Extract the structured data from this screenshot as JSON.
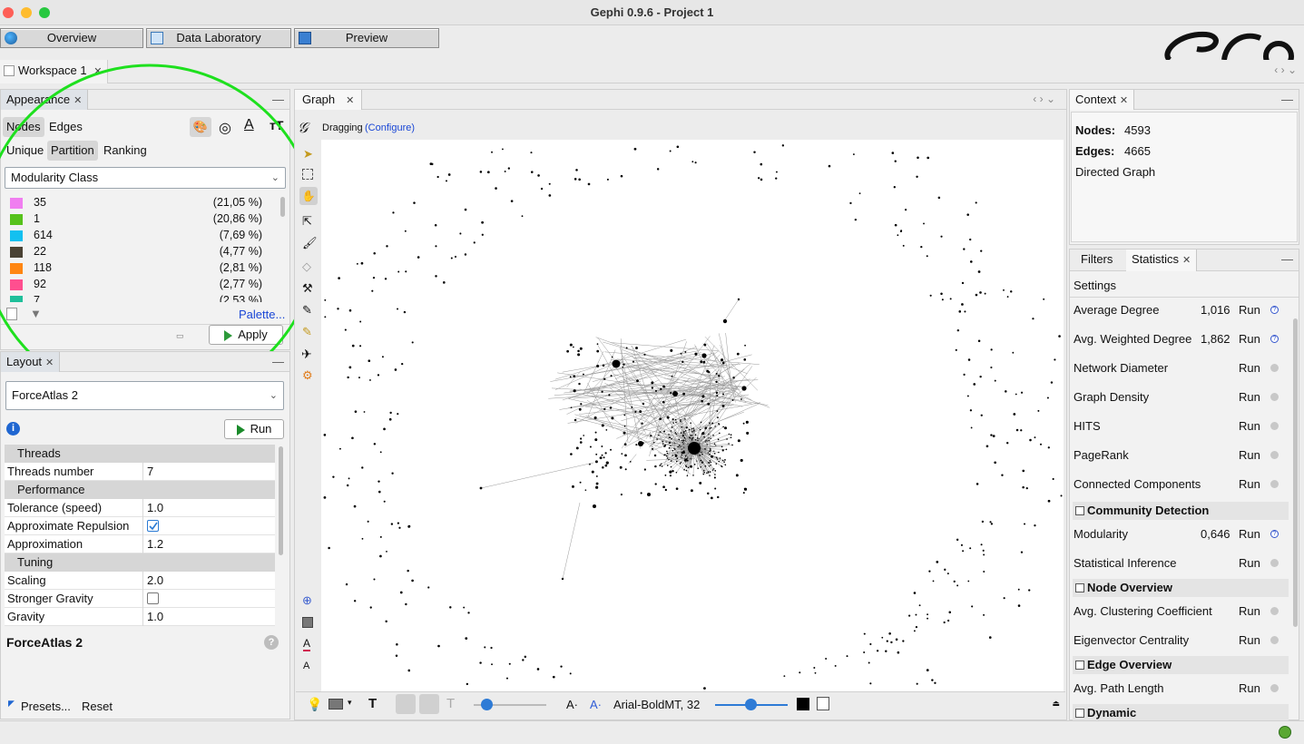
{
  "window": {
    "title": "Gephi 0.9.6 - Project 1"
  },
  "toolbar": {
    "overview": "Overview",
    "data_laboratory": "Data Laboratory",
    "preview": "Preview"
  },
  "workspace": {
    "tab": "Workspace 1"
  },
  "appearance": {
    "tab": "Appearance",
    "nodes": "Nodes",
    "edges": "Edges",
    "unique": "Unique",
    "partition": "Partition",
    "ranking": "Ranking",
    "attribute": "Modularity Class",
    "partitions": [
      {
        "name": "35",
        "pct": "(21,05 %)",
        "color": "#f07ef0"
      },
      {
        "name": "1",
        "pct": "(20,86 %)",
        "color": "#56c21b"
      },
      {
        "name": "614",
        "pct": "(7,69 %)",
        "color": "#12c0f0"
      },
      {
        "name": "22",
        "pct": "(4,77 %)",
        "color": "#4a4234"
      },
      {
        "name": "118",
        "pct": "(2,81 %)",
        "color": "#ff8612"
      },
      {
        "name": "92",
        "pct": "(2,77 %)",
        "color": "#ff4f8f"
      },
      {
        "name": "7",
        "pct": "(2,53 %)",
        "color": "#1fbf9a"
      }
    ],
    "palette": "Palette...",
    "apply": "Apply"
  },
  "layout": {
    "tab": "Layout",
    "algorithm": "ForceAtlas 2",
    "run": "Run",
    "sections": {
      "threads": "Threads",
      "performance": "Performance",
      "tuning": "Tuning"
    },
    "props": {
      "threads_number": {
        "k": "Threads number",
        "v": "7"
      },
      "tolerance": {
        "k": "Tolerance (speed)",
        "v": "1.0"
      },
      "approx_repulsion": {
        "k": "Approximate Repulsion"
      },
      "approximation": {
        "k": "Approximation",
        "v": "1.2"
      },
      "scaling": {
        "k": "Scaling",
        "v": "2.0"
      },
      "stronger_gravity": {
        "k": "Stronger Gravity"
      },
      "gravity": {
        "k": "Gravity",
        "v": "1.0"
      }
    },
    "description_title": "ForceAtlas 2",
    "presets": "Presets...",
    "reset": "Reset"
  },
  "graph": {
    "tab": "Graph",
    "mode": "Dragging",
    "configure": "(Configure)",
    "font": "Arial-BoldMT, 32"
  },
  "context": {
    "tab": "Context",
    "nodes_label": "Nodes:",
    "nodes_value": "4593",
    "edges_label": "Edges:",
    "edges_value": "4665",
    "graph_type": "Directed Graph"
  },
  "statistics": {
    "filters_tab": "Filters",
    "stats_tab": "Statistics",
    "settings": "Settings",
    "run": "Run",
    "network_overview": [
      {
        "name": "Average Degree",
        "value": "1,016"
      },
      {
        "name": "Avg. Weighted Degree",
        "value": "1,862"
      },
      {
        "name": "Network Diameter",
        "value": ""
      },
      {
        "name": "Graph Density",
        "value": ""
      },
      {
        "name": "HITS",
        "value": ""
      },
      {
        "name": "PageRank",
        "value": ""
      },
      {
        "name": "Connected Components",
        "value": ""
      }
    ],
    "community_detection": "Community Detection",
    "community": [
      {
        "name": "Modularity",
        "value": "0,646"
      },
      {
        "name": "Statistical Inference",
        "value": ""
      }
    ],
    "node_overview": "Node Overview",
    "node": [
      {
        "name": "Avg. Clustering Coefficient",
        "value": ""
      },
      {
        "name": "Eigenvector Centrality",
        "value": ""
      }
    ],
    "edge_overview": "Edge Overview",
    "edge": [
      {
        "name": "Avg. Path Length",
        "value": ""
      }
    ],
    "dynamic": "Dynamic"
  },
  "colors": {
    "highlight_circle": "#1ee01e",
    "link": "#1a47d6"
  }
}
